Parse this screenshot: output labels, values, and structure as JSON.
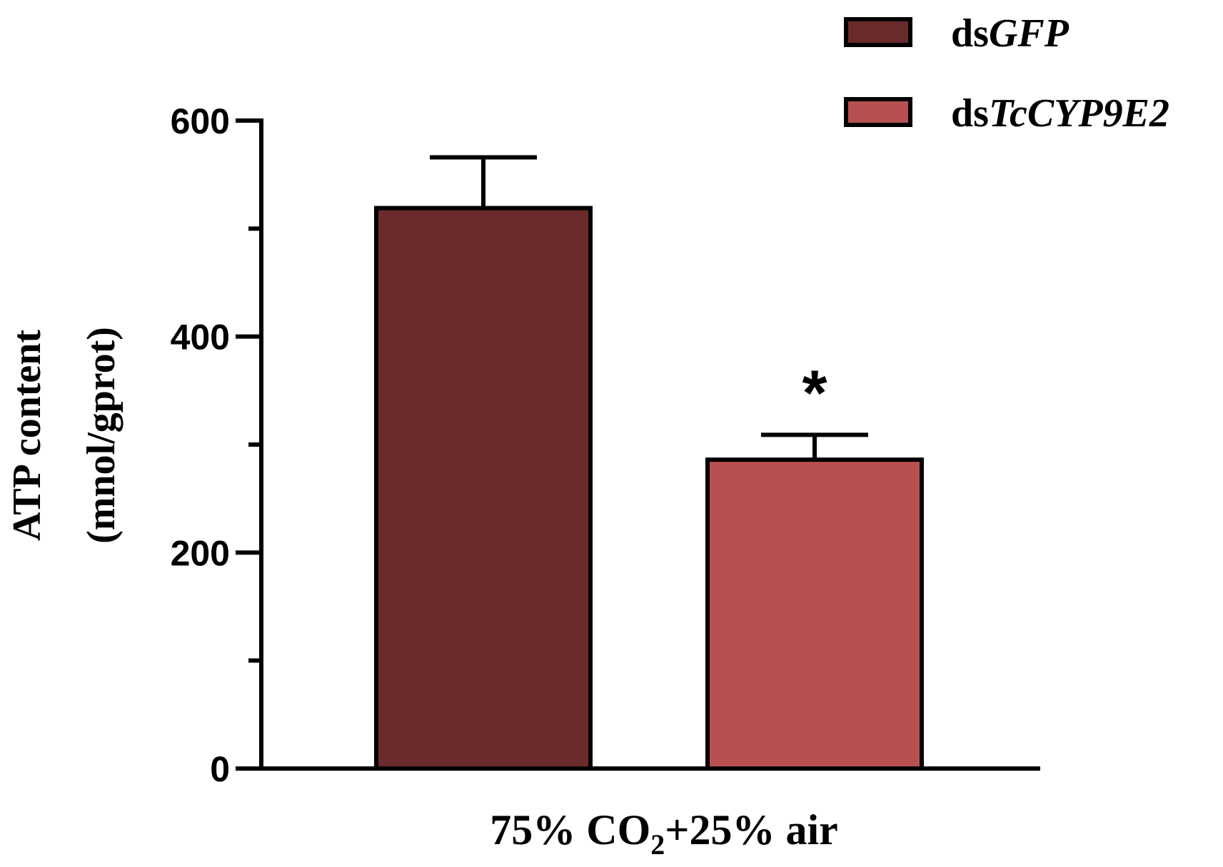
{
  "chart_data": {
    "type": "bar",
    "categories": [
      "75% CO2+25% air"
    ],
    "category_label": {
      "prefix": "75% CO",
      "subscript": "2",
      "suffix": "+25% air"
    },
    "series": [
      {
        "name": "dsGFP",
        "name_prefix": "ds",
        "name_italic": "GFP",
        "color": "#6b2a2c",
        "value": 519,
        "error": 47
      },
      {
        "name": "dsTcCYP9E2",
        "name_prefix": "ds",
        "name_italic": "TcCYP9E2",
        "color": "#b85050",
        "value": 286,
        "error": 23,
        "significance": "*"
      }
    ],
    "ylabel_line1": "ATP content",
    "ylabel_line2": "(mnol/gprot)",
    "ylim": [
      0,
      600
    ],
    "yticks_major": [
      0,
      200,
      400,
      600
    ],
    "yticks_minor": [
      100,
      300,
      500
    ],
    "legend_position": "top-right",
    "grid": false
  }
}
